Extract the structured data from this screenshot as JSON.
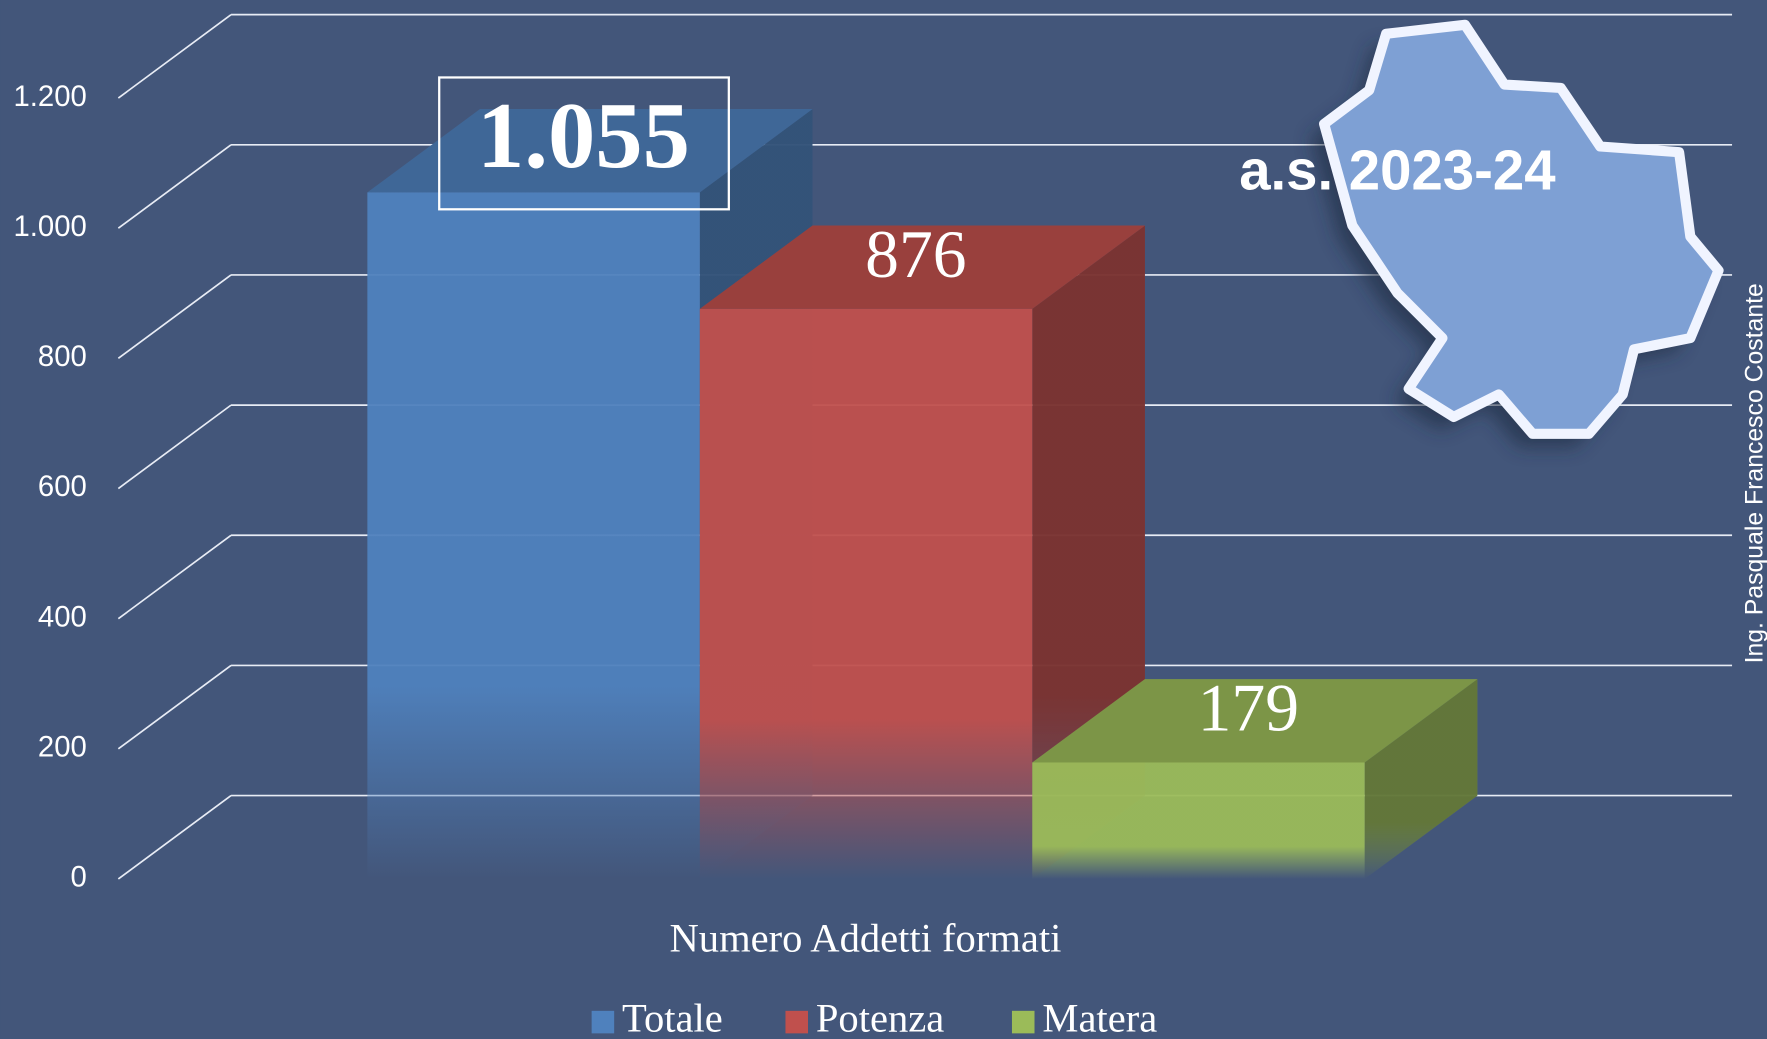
{
  "chart_data": {
    "type": "bar3d",
    "x_label": "Numero Addetti formati",
    "series": [
      {
        "name": "Totale",
        "color": "#4f81bd",
        "values": [
          1055
        ],
        "value_labels": [
          "1.055"
        ]
      },
      {
        "name": "Potenza",
        "color": "#c0504d",
        "values": [
          876
        ]
      },
      {
        "name": "Matera",
        "color": "#9bbb59",
        "values": [
          179
        ]
      }
    ],
    "ylim": [
      0,
      1200
    ],
    "yticks": [
      0,
      200,
      400,
      600,
      800,
      {
        "value": 1000,
        "label": "1.000"
      },
      {
        "value": 1200,
        "label": "1.200"
      }
    ],
    "grid": true,
    "legend": "bottom",
    "annotations": [
      "a.s. 2023-24",
      "Ing. Pasquale Francesco Costante"
    ]
  }
}
